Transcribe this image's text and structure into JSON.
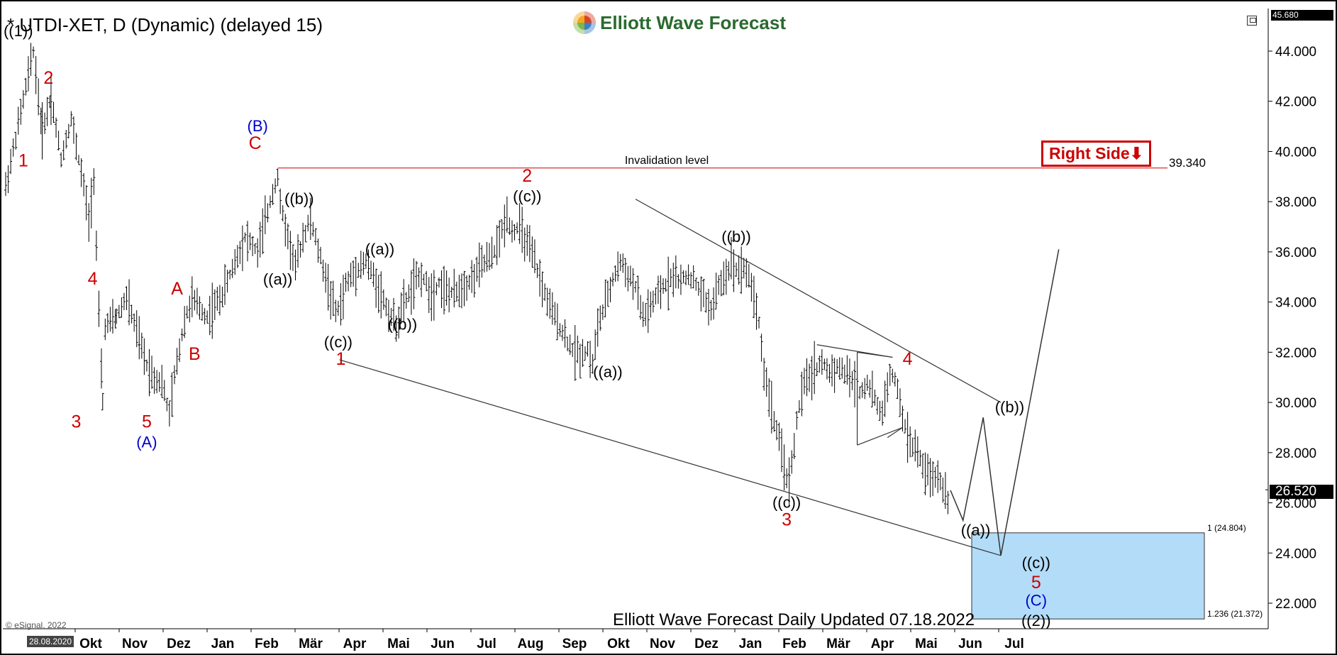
{
  "chart_data": {
    "type": "ohlc",
    "title": "* UTDI-XET, D (Dynamic) (delayed 15)",
    "logo_text": "Elliott Wave Forecast",
    "ylim": [
      21.0,
      45.7
    ],
    "y_ticks": [
      "44.000",
      "42.000",
      "40.000",
      "38.000",
      "36.000",
      "34.000",
      "32.000",
      "30.000",
      "28.000",
      "26.000",
      "24.000",
      "22.000"
    ],
    "y_tick_values": [
      44,
      42,
      40,
      38,
      36,
      34,
      32,
      30,
      28,
      26,
      24,
      22
    ],
    "top_price_label": "45.680",
    "last_price_label": "26.520",
    "last_price": 26.52,
    "x_months": [
      "Okt",
      "Nov",
      "Dez",
      "Jan",
      "Feb",
      "Mär",
      "Apr",
      "Mai",
      "Jun",
      "Jul",
      "Aug",
      "Sep",
      "Okt",
      "Nov",
      "Dez",
      "Jan",
      "Feb",
      "Mär",
      "Apr",
      "Mai",
      "Jun",
      "Jul"
    ],
    "start_date_label": "28.08.2020",
    "copyright": "© eSignal, 2022",
    "update_note": "Elliott Wave Forecast Daily Updated 07.18.2022",
    "right_side_badge": "Right Side",
    "invalidation": {
      "label": "Invalidation level",
      "value_label": "39.340",
      "value": 39.34
    },
    "target_zone": {
      "top": 24.804,
      "bottom": 21.372,
      "top_label": "1 (24.804)",
      "bottom_label": "1.236 (21.372)"
    },
    "path_points": [
      [
        0,
        38.6
      ],
      [
        22,
        44.0
      ],
      [
        29,
        40.8
      ],
      [
        36,
        42.2
      ],
      [
        44,
        39.7
      ],
      [
        52,
        41.3
      ],
      [
        62,
        38.6
      ],
      [
        66,
        37.2
      ],
      [
        70,
        39.0
      ],
      [
        74,
        33.5
      ],
      [
        77,
        30.0
      ],
      [
        79,
        33.0
      ],
      [
        88,
        33.4
      ],
      [
        96,
        34.2
      ],
      [
        104,
        32.8
      ],
      [
        112,
        31.5
      ],
      [
        118,
        31.0
      ],
      [
        124,
        30.8
      ],
      [
        130,
        29.5
      ],
      [
        134,
        31.0
      ],
      [
        142,
        33.3
      ],
      [
        148,
        34.1
      ],
      [
        160,
        33.4
      ],
      [
        172,
        34.3
      ],
      [
        182,
        35.6
      ],
      [
        190,
        36.6
      ],
      [
        200,
        36.0
      ],
      [
        206,
        37.2
      ],
      [
        212,
        38.4
      ],
      [
        216,
        39.0
      ],
      [
        218,
        37.9
      ],
      [
        224,
        36.6
      ],
      [
        230,
        35.4
      ],
      [
        236,
        36.6
      ],
      [
        242,
        37.3
      ],
      [
        248,
        36.1
      ],
      [
        256,
        34.6
      ],
      [
        262,
        33.6
      ],
      [
        266,
        33.9
      ],
      [
        270,
        34.7
      ],
      [
        278,
        35.3
      ],
      [
        286,
        35.6
      ],
      [
        292,
        35.0
      ],
      [
        298,
        34.3
      ],
      [
        304,
        33.6
      ],
      [
        310,
        33.1
      ],
      [
        316,
        33.9
      ],
      [
        324,
        34.7
      ],
      [
        330,
        35.1
      ],
      [
        338,
        34.3
      ],
      [
        344,
        34.8
      ],
      [
        350,
        34.4
      ],
      [
        356,
        34.3
      ],
      [
        362,
        34.6
      ],
      [
        370,
        34.9
      ],
      [
        378,
        35.5
      ],
      [
        386,
        35.8
      ],
      [
        392,
        36.5
      ],
      [
        398,
        37.5
      ],
      [
        402,
        36.8
      ],
      [
        408,
        37.0
      ],
      [
        414,
        36.3
      ],
      [
        420,
        35.6
      ],
      [
        426,
        34.6
      ],
      [
        432,
        33.8
      ],
      [
        438,
        33.2
      ],
      [
        444,
        32.6
      ],
      [
        450,
        32.1
      ],
      [
        456,
        31.9
      ],
      [
        462,
        32.1
      ],
      [
        466,
        31.5
      ],
      [
        470,
        33.0
      ],
      [
        476,
        33.9
      ],
      [
        482,
        34.9
      ],
      [
        488,
        35.6
      ],
      [
        494,
        35.1
      ],
      [
        500,
        34.6
      ],
      [
        506,
        33.4
      ],
      [
        512,
        33.8
      ],
      [
        518,
        34.3
      ],
      [
        524,
        34.7
      ],
      [
        530,
        35.1
      ],
      [
        536,
        34.8
      ],
      [
        542,
        35.1
      ],
      [
        548,
        34.7
      ],
      [
        554,
        34.2
      ],
      [
        560,
        33.7
      ],
      [
        566,
        34.6
      ],
      [
        572,
        35.1
      ],
      [
        576,
        35.6
      ],
      [
        580,
        35.3
      ],
      [
        586,
        35.4
      ],
      [
        592,
        34.7
      ],
      [
        598,
        33.2
      ],
      [
        602,
        31.2
      ],
      [
        606,
        30.3
      ],
      [
        610,
        29.3
      ],
      [
        614,
        28.4
      ],
      [
        618,
        27.5
      ],
      [
        622,
        26.7
      ],
      [
        624,
        27.6
      ],
      [
        628,
        29.2
      ],
      [
        632,
        30.4
      ],
      [
        636,
        30.9
      ],
      [
        642,
        31.3
      ],
      [
        648,
        31.6
      ],
      [
        654,
        31.2
      ],
      [
        660,
        31.4
      ],
      [
        666,
        31.2
      ],
      [
        672,
        30.9
      ],
      [
        678,
        30.4
      ],
      [
        684,
        30.8
      ],
      [
        690,
        30.1
      ],
      [
        696,
        29.5
      ],
      [
        700,
        30.8
      ],
      [
        704,
        31.1
      ],
      [
        708,
        30.5
      ],
      [
        712,
        29.4
      ],
      [
        716,
        28.6
      ],
      [
        720,
        28.3
      ],
      [
        724,
        28.0
      ],
      [
        728,
        27.4
      ],
      [
        732,
        27.2
      ],
      [
        736,
        26.9
      ],
      [
        740,
        27.1
      ],
      [
        744,
        26.6
      ],
      [
        748,
        26.2
      ],
      [
        750,
        26.5
      ]
    ],
    "wave_path": [
      [
        750,
        26.5
      ],
      [
        760,
        25.3
      ],
      [
        776,
        29.4
      ],
      [
        790,
        23.9
      ],
      [
        836,
        36.1
      ]
    ],
    "trend_lines": [
      {
        "name": "upper-channel-line",
        "points": [
          [
            500,
            38.1
          ],
          [
            790,
            30.0
          ]
        ]
      },
      {
        "name": "lower-channel-line",
        "points": [
          [
            265,
            31.7
          ],
          [
            790,
            23.9
          ]
        ]
      },
      {
        "name": "triangle-upper-a",
        "points": [
          [
            644,
            32.3
          ],
          [
            704,
            31.8
          ]
        ]
      },
      {
        "name": "triangle-upper-b",
        "points": [
          [
            676,
            32.0
          ],
          [
            704,
            31.8
          ]
        ]
      },
      {
        "name": "triangle-side",
        "points": [
          [
            676,
            28.3
          ],
          [
            676,
            32.0
          ]
        ]
      },
      {
        "name": "triangle-lower-a",
        "points": [
          [
            676,
            28.3
          ],
          [
            712,
            29.0
          ]
        ]
      },
      {
        "name": "triangle-lower-b",
        "points": [
          [
            700,
            28.6
          ],
          [
            712,
            29.0
          ]
        ]
      }
    ],
    "labels": [
      {
        "text": "((1))",
        "t": 10,
        "v": 44.6,
        "color": "#000000"
      },
      {
        "text": "2",
        "t": 34,
        "v": 42.7,
        "color": "#cc0000"
      },
      {
        "text": "1",
        "t": 14,
        "v": 39.4,
        "color": "#cc0000"
      },
      {
        "text": "3",
        "t": 56,
        "v": 29.0,
        "color": "#cc0000"
      },
      {
        "text": "4",
        "t": 69,
        "v": 34.7,
        "color": "#cc0000"
      },
      {
        "text": "5",
        "t": 112,
        "v": 29.0,
        "color": "#cc0000"
      },
      {
        "text": "(A)",
        "t": 112,
        "v": 28.2,
        "color": "#0000cc"
      },
      {
        "text": "A",
        "t": 136,
        "v": 34.3,
        "color": "#cc0000"
      },
      {
        "text": "B",
        "t": 150,
        "v": 31.7,
        "color": "#cc0000"
      },
      {
        "text": "(B)",
        "t": 200,
        "v": 40.8,
        "color": "#0000cc"
      },
      {
        "text": "C",
        "t": 198,
        "v": 40.1,
        "color": "#cc0000"
      },
      {
        "text": "((b))",
        "t": 233,
        "v": 37.9,
        "color": "#000000"
      },
      {
        "text": "((a))",
        "t": 216,
        "v": 34.7,
        "color": "#000000"
      },
      {
        "text": "((c))",
        "t": 264,
        "v": 32.2,
        "color": "#000000"
      },
      {
        "text": "1",
        "t": 266,
        "v": 31.5,
        "color": "#cc0000"
      },
      {
        "text": "((a))",
        "t": 297,
        "v": 35.9,
        "color": "#000000"
      },
      {
        "text": "((b))",
        "t": 315,
        "v": 32.9,
        "color": "#000000"
      },
      {
        "text": "2",
        "t": 414,
        "v": 38.8,
        "color": "#cc0000"
      },
      {
        "text": "((c))",
        "t": 414,
        "v": 38.0,
        "color": "#000000"
      },
      {
        "text": "((a))",
        "t": 478,
        "v": 31.0,
        "color": "#000000"
      },
      {
        "text": "((b))",
        "t": 580,
        "v": 36.4,
        "color": "#000000"
      },
      {
        "text": "((c))",
        "t": 620,
        "v": 25.8,
        "color": "#000000"
      },
      {
        "text": "3",
        "t": 620,
        "v": 25.1,
        "color": "#cc0000"
      },
      {
        "text": "4",
        "t": 716,
        "v": 31.5,
        "color": "#cc0000"
      },
      {
        "text": "((b))",
        "t": 797,
        "v": 29.6,
        "color": "#000000"
      },
      {
        "text": "((a))",
        "t": 770,
        "v": 24.7,
        "color": "#000000"
      },
      {
        "text": "((c))",
        "t": 818,
        "v": 23.4,
        "color": "#000000"
      },
      {
        "text": "5",
        "t": 818,
        "v": 22.6,
        "color": "#cc0000"
      },
      {
        "text": "(C)",
        "t": 818,
        "v": 21.9,
        "color": "#0000cc"
      },
      {
        "text": "((2))",
        "t": 818,
        "v": 21.1,
        "color": "#000000"
      }
    ]
  }
}
